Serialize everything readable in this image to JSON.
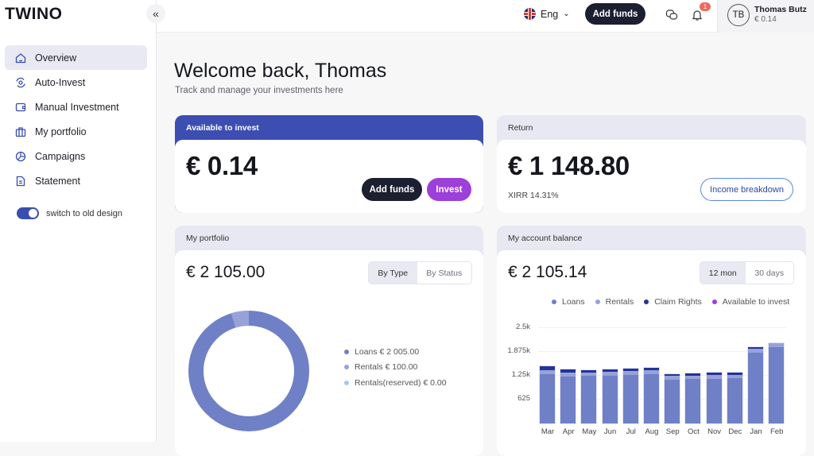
{
  "sidebar": {
    "logo": "TWINO",
    "collapse_icon": "«",
    "items": [
      {
        "label": "Overview",
        "icon": "home-icon",
        "active": true
      },
      {
        "label": "Auto-Invest",
        "icon": "auto-invest-icon",
        "active": false
      },
      {
        "label": "Manual Investment",
        "icon": "wallet-icon",
        "active": false
      },
      {
        "label": "My portfolio",
        "icon": "briefcase-icon",
        "active": false
      },
      {
        "label": "Campaigns",
        "icon": "pie-icon",
        "active": false
      },
      {
        "label": "Statement",
        "icon": "document-icon",
        "active": false
      }
    ],
    "toggle_label": "switch to old design"
  },
  "topbar": {
    "language": "Eng",
    "add_funds": "Add funds",
    "notification_count": "1",
    "user": {
      "initials": "TB",
      "name": "Thomas Butz",
      "balance": "€ 0.14"
    }
  },
  "main": {
    "title": "Welcome back, Thomas",
    "subtitle": "Track and manage your investments here",
    "available": {
      "label": "Available to invest",
      "value": "€ 0.14",
      "add_funds": "Add funds",
      "invest": "Invest"
    },
    "return": {
      "label": "Return",
      "value": "€ 1 148.80",
      "xirr": "XIRR 14.31%",
      "button": "Income breakdown"
    },
    "portfolio": {
      "label": "My portfolio",
      "value": "€ 2 105.00",
      "tabs": [
        "By Type",
        "By Status"
      ],
      "legend": [
        {
          "label": "Loans € 2 005.00",
          "color": "#6f80c6"
        },
        {
          "label": "Rentals € 100.00",
          "color": "#97a2d8"
        },
        {
          "label": "Rentals(reserved) € 0.00",
          "color": "#a5c8f5"
        }
      ]
    },
    "balance": {
      "label": "My account balance",
      "value": "€ 2 105.14",
      "tabs": [
        "12 mon",
        "30 days"
      ],
      "legend": [
        {
          "label": "Loans",
          "color": "#6f80c6"
        },
        {
          "label": "Rentals",
          "color": "#97a2d8"
        },
        {
          "label": "Claim Rights",
          "color": "#23339a"
        },
        {
          "label": "Available to invest",
          "color": "#a23ad8"
        }
      ]
    }
  },
  "chart_data": [
    {
      "type": "pie",
      "title": "My portfolio",
      "categories": [
        "Loans",
        "Rentals",
        "Rentals(reserved)"
      ],
      "values": [
        2005.0,
        100.0,
        0.0
      ],
      "colors": [
        "#6f80c6",
        "#97a2d8",
        "#a5c8f5"
      ],
      "legend_position": "right"
    },
    {
      "type": "bar",
      "title": "My account balance",
      "categories": [
        "Mar",
        "Apr",
        "May",
        "Jun",
        "Jul",
        "Aug",
        "Sep",
        "Oct",
        "Nov",
        "Dec",
        "Jan",
        "Feb"
      ],
      "series": [
        {
          "name": "Loans",
          "values": [
            1300,
            1230,
            1240,
            1250,
            1270,
            1290,
            1140,
            1160,
            1170,
            1180,
            1860,
            2000
          ]
        },
        {
          "name": "Rentals",
          "values": [
            100,
            100,
            100,
            100,
            100,
            100,
            100,
            100,
            100,
            100,
            100,
            100
          ]
        },
        {
          "name": "Claim Rights",
          "values": [
            100,
            80,
            60,
            60,
            60,
            60,
            60,
            60,
            60,
            60,
            50,
            0
          ]
        },
        {
          "name": "Available to invest",
          "values": [
            0,
            0,
            0,
            0,
            0,
            0,
            0,
            0,
            0,
            0,
            0,
            0.14
          ]
        }
      ],
      "yticks": [
        "625",
        "1.25k",
        "1.875k",
        "2.5k"
      ],
      "ylim": [
        0,
        2500
      ],
      "stacked": true,
      "grid": true,
      "legend_position": "top"
    }
  ]
}
